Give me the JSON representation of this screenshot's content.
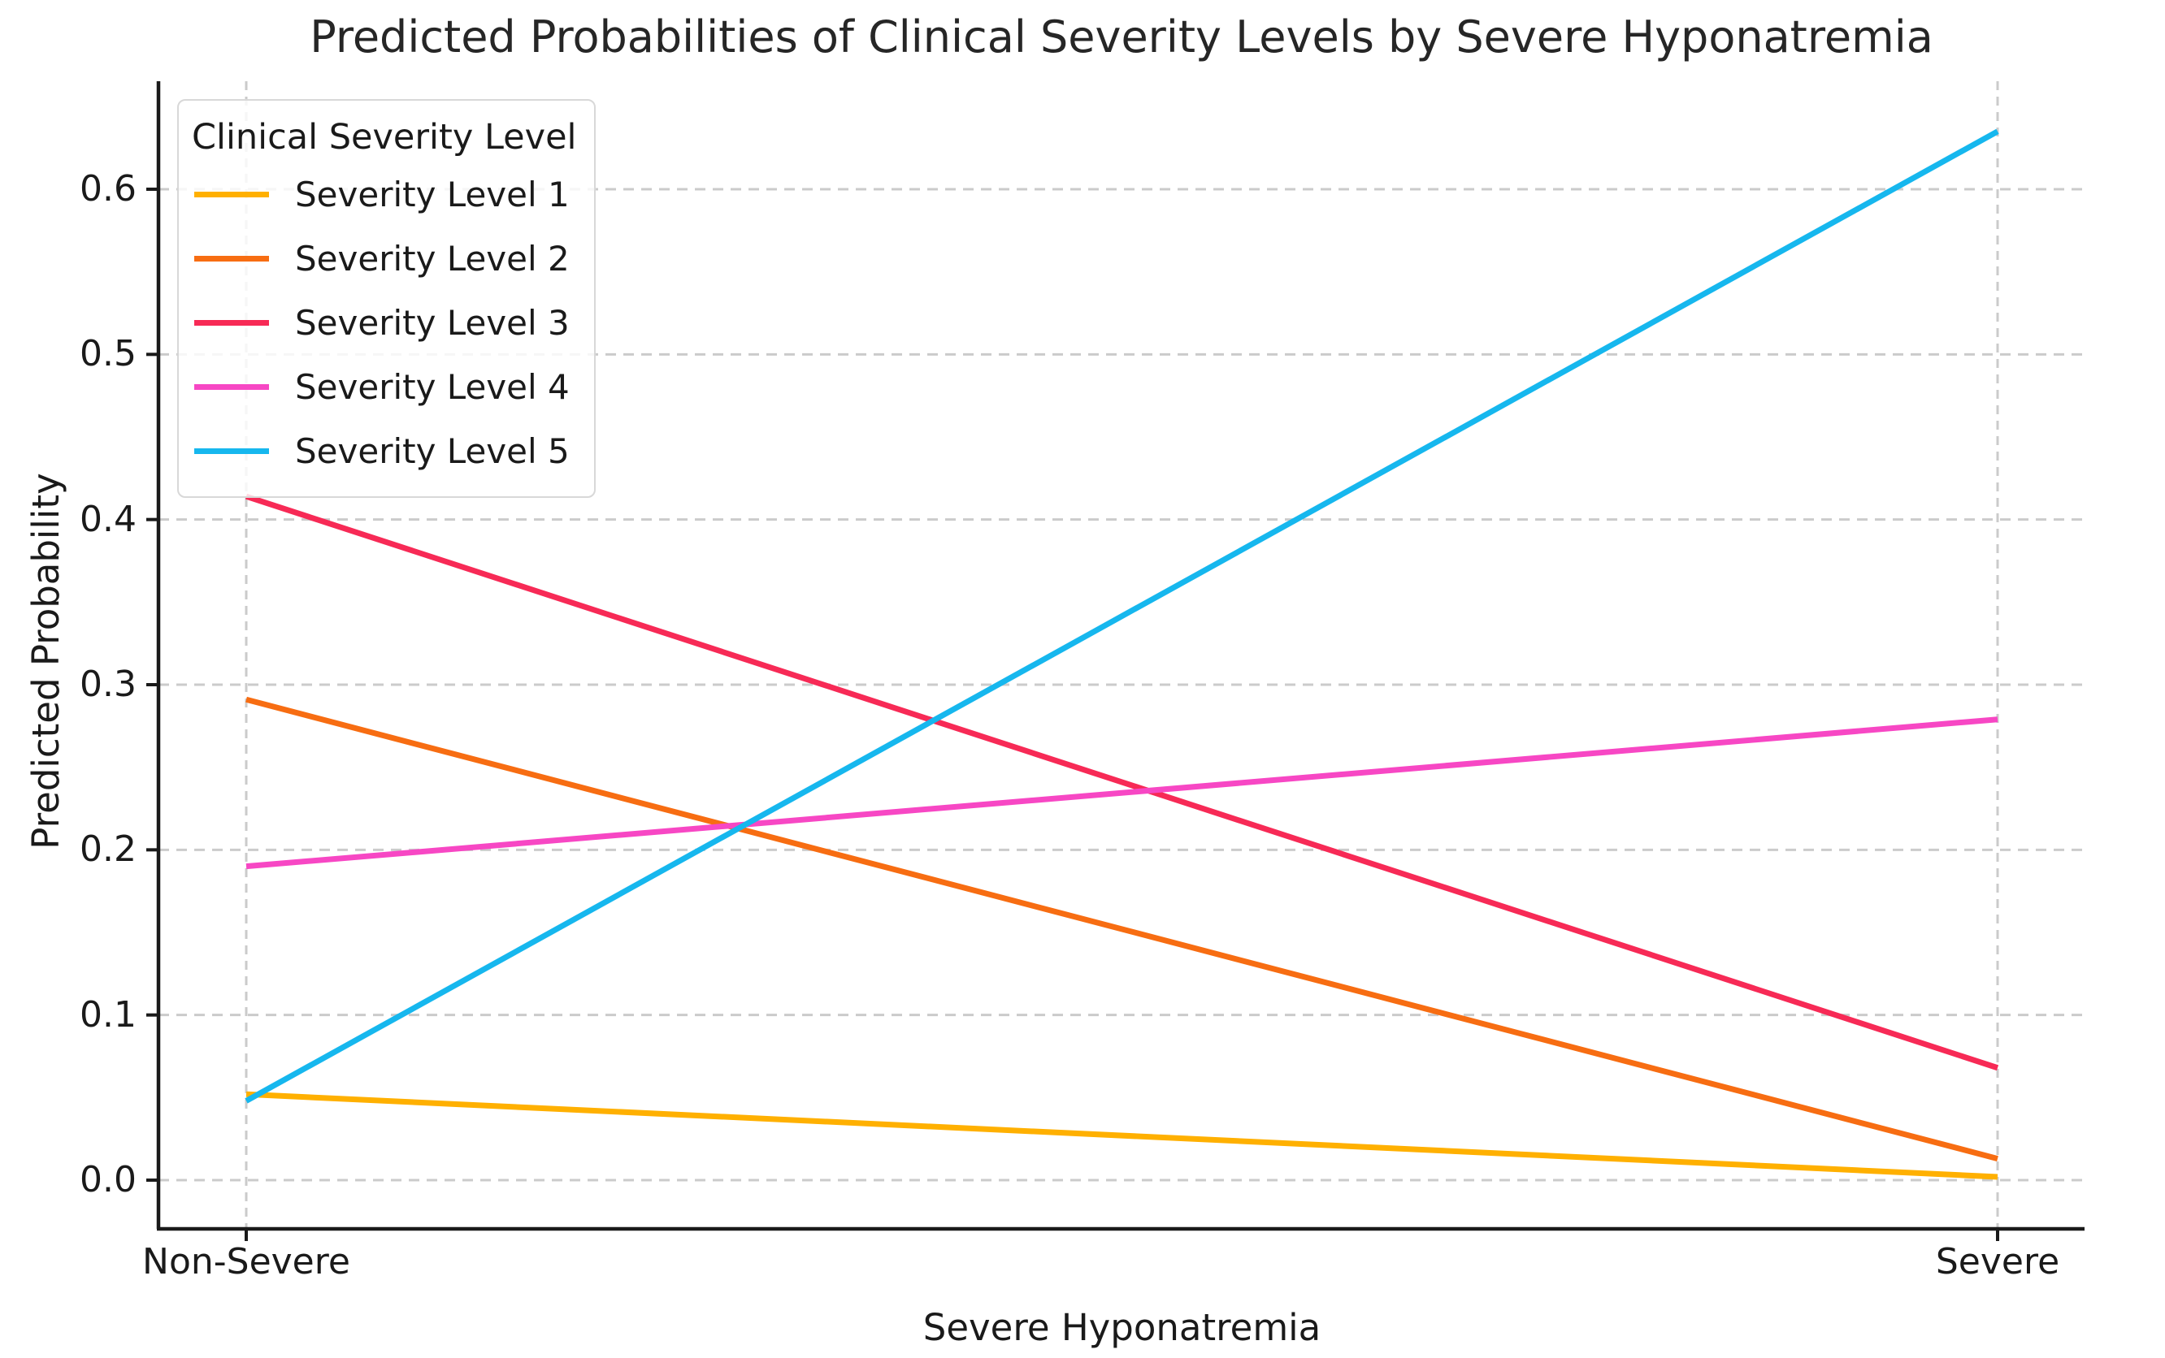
{
  "chart_data": {
    "type": "line",
    "title": "Predicted Probabilities of Clinical Severity Levels by Severe Hyponatremia",
    "xlabel": "Severe Hyponatremia",
    "ylabel": "Predicted Probability",
    "categories": [
      "Non-Severe",
      "Severe"
    ],
    "ytick_labels": [
      "0.0",
      "0.1",
      "0.2",
      "0.3",
      "0.4",
      "0.5",
      "0.6"
    ],
    "yticks": [
      0.0,
      0.1,
      0.2,
      0.3,
      0.4,
      0.5,
      0.6
    ],
    "ylim": [
      -0.0295,
      0.6654
    ],
    "grid": "dashed",
    "legend": {
      "title": "Clinical Severity Level",
      "position": "upper left"
    },
    "series": [
      {
        "name": "Severity Level 1",
        "color": "#ffb000",
        "values": [
          0.052,
          0.002
        ]
      },
      {
        "name": "Severity Level 2",
        "color": "#f76d12",
        "values": [
          0.291,
          0.013
        ]
      },
      {
        "name": "Severity Level 3",
        "color": "#f72a56",
        "values": [
          0.414,
          0.068
        ]
      },
      {
        "name": "Severity Level 4",
        "color": "#f747c4",
        "values": [
          0.19,
          0.279
        ]
      },
      {
        "name": "Severity Level 5",
        "color": "#16b7ee",
        "values": [
          0.048,
          0.635
        ]
      }
    ],
    "colors": {
      "grid": "#cbcbcb",
      "spine": "#1a1a1a",
      "text": "#1a1a1a",
      "title_text": "#262626",
      "background": "#ffffff"
    }
  }
}
